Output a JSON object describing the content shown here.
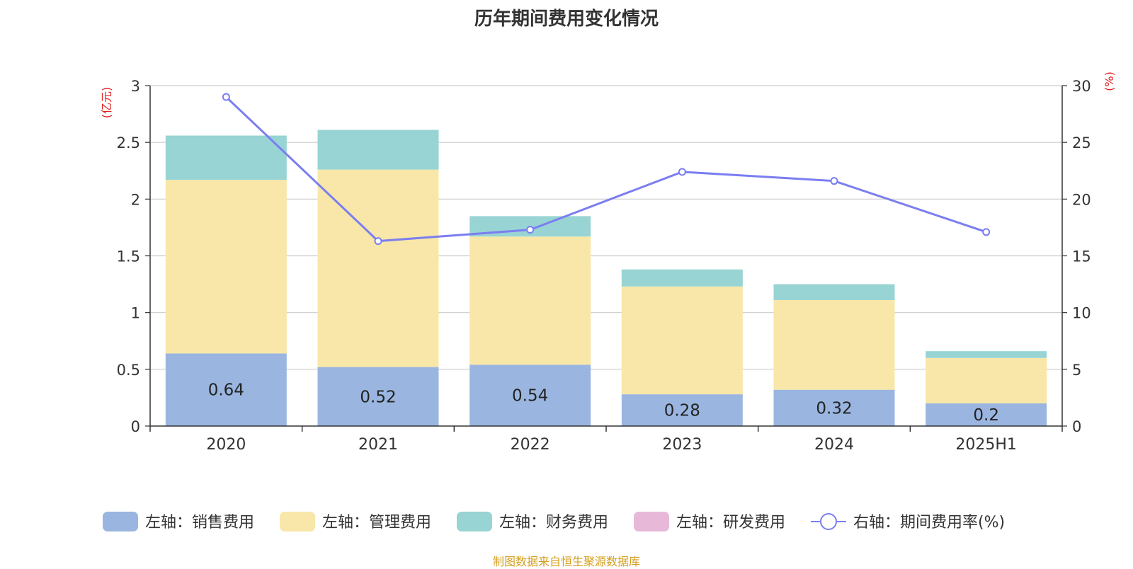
{
  "chart_data": {
    "type": "bar",
    "title": "历年期间费用变化情况",
    "categories": [
      "2020",
      "2021",
      "2022",
      "2023",
      "2024",
      "2025H1"
    ],
    "left_axis": {
      "unit_label": "(亿元)",
      "range": [
        0,
        3
      ],
      "ticks": [
        "0",
        "0.5",
        "1",
        "1.5",
        "2",
        "2.5",
        "3"
      ],
      "tick_values": [
        0,
        0.5,
        1,
        1.5,
        2,
        2.5,
        3
      ]
    },
    "right_axis": {
      "unit_label": "(%)",
      "range": [
        0,
        30
      ],
      "ticks": [
        "0",
        "5",
        "10",
        "15",
        "20",
        "25",
        "30"
      ],
      "tick_values": [
        0,
        5,
        10,
        15,
        20,
        25,
        30
      ]
    },
    "series": [
      {
        "name": "左轴：销售费用",
        "type": "stacked-bar",
        "axis": "left",
        "color": "#9ab6e0",
        "values": [
          0.64,
          0.52,
          0.54,
          0.28,
          0.32,
          0.2
        ],
        "data_labels": [
          "0.64",
          "0.52",
          "0.54",
          "0.28",
          "0.32",
          "0.2"
        ]
      },
      {
        "name": "左轴：管理费用",
        "type": "stacked-bar",
        "axis": "left",
        "color": "#f8e7a8",
        "values": [
          1.53,
          1.74,
          1.13,
          0.95,
          0.79,
          0.4
        ]
      },
      {
        "name": "左轴：财务费用",
        "type": "stacked-bar",
        "axis": "left",
        "color": "#98d4d4",
        "values": [
          0.39,
          0.35,
          0.18,
          0.15,
          0.14,
          0.06
        ]
      },
      {
        "name": "左轴：研发费用",
        "type": "stacked-bar",
        "axis": "left",
        "color": "#e8b8d8",
        "values": [
          0,
          0,
          0,
          0,
          0,
          0
        ]
      },
      {
        "name": "右轴：期间费用率(%)",
        "type": "line",
        "axis": "right",
        "color": "#7b7ef0",
        "values": [
          29.0,
          16.3,
          17.3,
          22.4,
          21.6,
          17.1
        ]
      }
    ],
    "grid": true,
    "legend_position": "bottom",
    "source": "制图数据来自恒生聚源数据库"
  }
}
